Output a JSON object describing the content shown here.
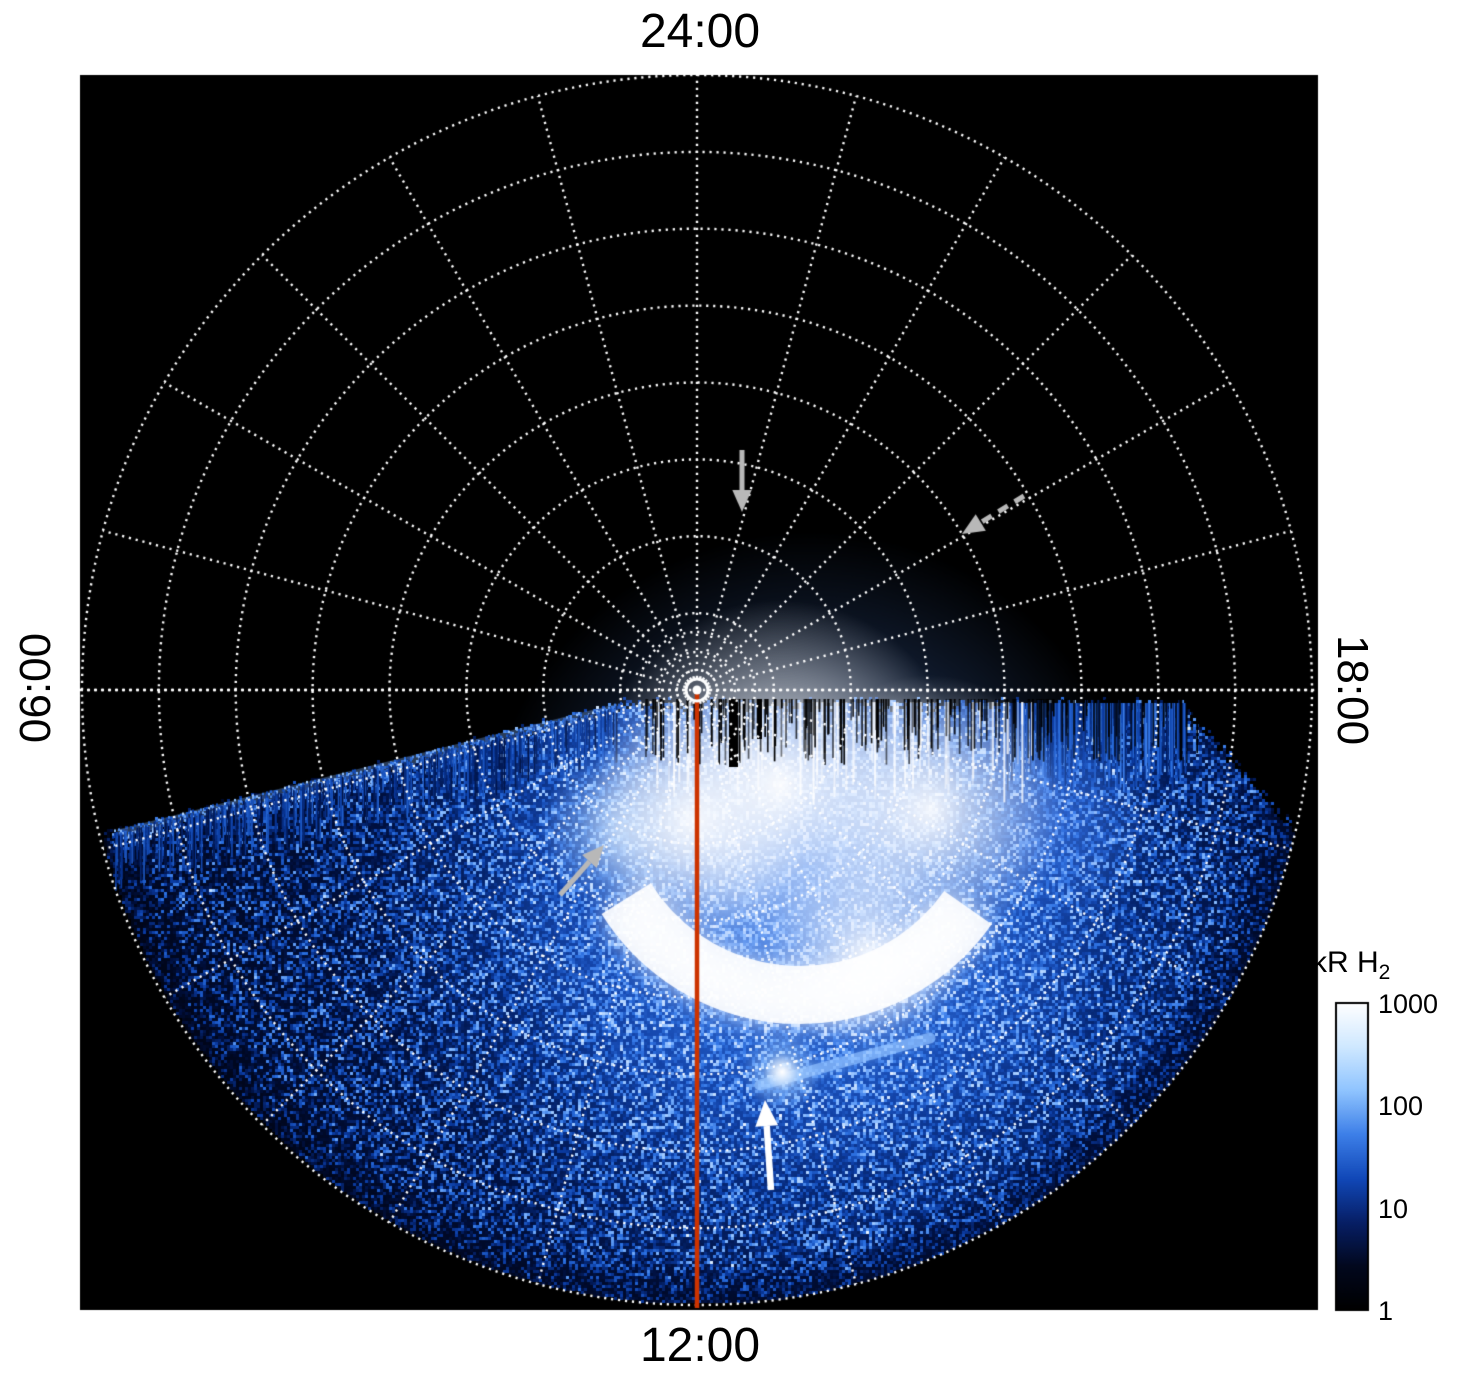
{
  "figure": {
    "background": "#ffffff",
    "plot_background": "#000000",
    "grid_color": "#ffffff",
    "meridian_line_color": "#cc3300",
    "arrow_gray": "#b8b8b8",
    "arrow_white": "#ffffff",
    "labels": {
      "top": "24:00",
      "bottom": "12:00",
      "left": "06:00",
      "right": "18:00"
    },
    "colorbar": {
      "title": "kR H",
      "title_sub": "2",
      "ticks": [
        "1000",
        "100",
        "10",
        "1"
      ],
      "gradient_stops": [
        "#ffffff",
        "#cfe8ff",
        "#8fc4ff",
        "#3d7fe8",
        "#1148b8",
        "#071f66",
        "#02081e",
        "#000000"
      ]
    },
    "noise_colormap": [
      "#000006",
      "#001040",
      "#0a3aa0",
      "#2a6fe0",
      "#7fb6ff",
      "#d9ecff",
      "#ffffff"
    ]
  },
  "chart_data": {
    "type": "heatmap",
    "projection": "polar",
    "quantity": "H2 ultraviolet auroral emission brightness",
    "units": "kR H2",
    "color_scale": "log",
    "color_range": [
      1,
      1000
    ],
    "colorbar_ticks": [
      1,
      10,
      100,
      1000
    ],
    "colorbar_label": "kR H2",
    "angular_axis": "local time (hours)",
    "angle_tick_labels": [
      {
        "position": "top",
        "label": "24:00"
      },
      {
        "position": "left",
        "label": "06:00"
      },
      {
        "position": "bottom",
        "label": "12:00"
      },
      {
        "position": "right",
        "label": "18:00"
      }
    ],
    "grid": {
      "style": "dotted",
      "spoke_interval_deg": 15,
      "radial_rings": 8
    },
    "annotations": [
      {
        "type": "line",
        "name": "noon-meridian",
        "color": "#cc3300",
        "from": "pole",
        "to": "12:00 limb"
      },
      {
        "type": "arrow",
        "color": "gray",
        "points_to": "location near 23:00 LT at mid colatitude on dark nightside"
      },
      {
        "type": "arrow",
        "color": "gray",
        "points_to": "location near 19:30 LT at mid colatitude on dark nightside"
      },
      {
        "type": "arrow",
        "color": "gray",
        "points_to": "morning edge of bright dayside emission near 09:00 LT"
      },
      {
        "type": "arrow",
        "color": "white",
        "points_to": "isolated bright auroral spot equatorward of main emission near 12:00 LT"
      }
    ],
    "features": [
      {
        "name": "nightside",
        "description": "Upper (nightside, ~18:00-24:00-06:00) half of polar projection is dark with no detectable emission"
      },
      {
        "name": "dayside-emission-region",
        "description": "Noisy blue emission (~1-100 kR) filling the dayside half of the projection from ~06:00 through 12:00 to ~18:00 local time out to the outer ring"
      },
      {
        "name": "bright-main-emission",
        "description": "Saturated white emission (>=1000 kR) patch and arc spanning roughly 09:00-15:00 LT at mid colatitudes, with ragged striated poleward edge"
      },
      {
        "name": "dawn-band",
        "description": "Narrow brighter blue band extending toward 06:00-07:00 LT along the morning edge of the emission region"
      },
      {
        "name": "bright-spot",
        "description": "Compact intense white spot equatorward of the main arc near 12:00 LT, marked by the white arrow, with faint blue tail"
      }
    ]
  }
}
